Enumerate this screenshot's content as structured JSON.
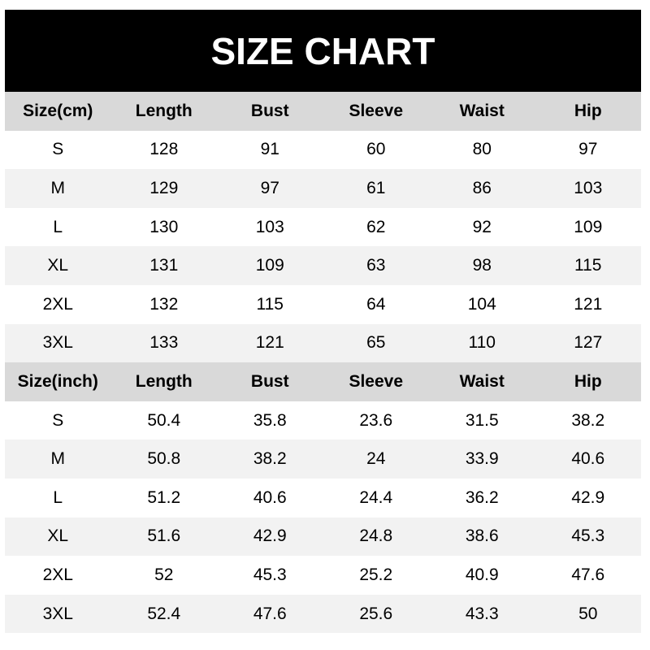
{
  "title": "SIZE CHART",
  "colors": {
    "title_bg": "#000000",
    "header_bg": "#d9d9d9",
    "alt_row_bg": "#f2f2f2"
  },
  "sections": [
    {
      "headers": [
        "Size(cm)",
        "Length",
        "Bust",
        "Sleeve",
        "Waist",
        "Hip"
      ],
      "rows": [
        [
          "S",
          "128",
          "91",
          "60",
          "80",
          "97"
        ],
        [
          "M",
          "129",
          "97",
          "61",
          "86",
          "103"
        ],
        [
          "L",
          "130",
          "103",
          "62",
          "92",
          "109"
        ],
        [
          "XL",
          "131",
          "109",
          "63",
          "98",
          "115"
        ],
        [
          "2XL",
          "132",
          "115",
          "64",
          "104",
          "121"
        ],
        [
          "3XL",
          "133",
          "121",
          "65",
          "110",
          "127"
        ]
      ]
    },
    {
      "headers": [
        "Size(inch)",
        "Length",
        "Bust",
        "Sleeve",
        "Waist",
        "Hip"
      ],
      "rows": [
        [
          "S",
          "50.4",
          "35.8",
          "23.6",
          "31.5",
          "38.2"
        ],
        [
          "M",
          "50.8",
          "38.2",
          "24",
          "33.9",
          "40.6"
        ],
        [
          "L",
          "51.2",
          "40.6",
          "24.4",
          "36.2",
          "42.9"
        ],
        [
          "XL",
          "51.6",
          "42.9",
          "24.8",
          "38.6",
          "45.3"
        ],
        [
          "2XL",
          "52",
          "45.3",
          "25.2",
          "40.9",
          "47.6"
        ],
        [
          "3XL",
          "52.4",
          "47.6",
          "25.6",
          "43.3",
          "50"
        ]
      ]
    }
  ]
}
